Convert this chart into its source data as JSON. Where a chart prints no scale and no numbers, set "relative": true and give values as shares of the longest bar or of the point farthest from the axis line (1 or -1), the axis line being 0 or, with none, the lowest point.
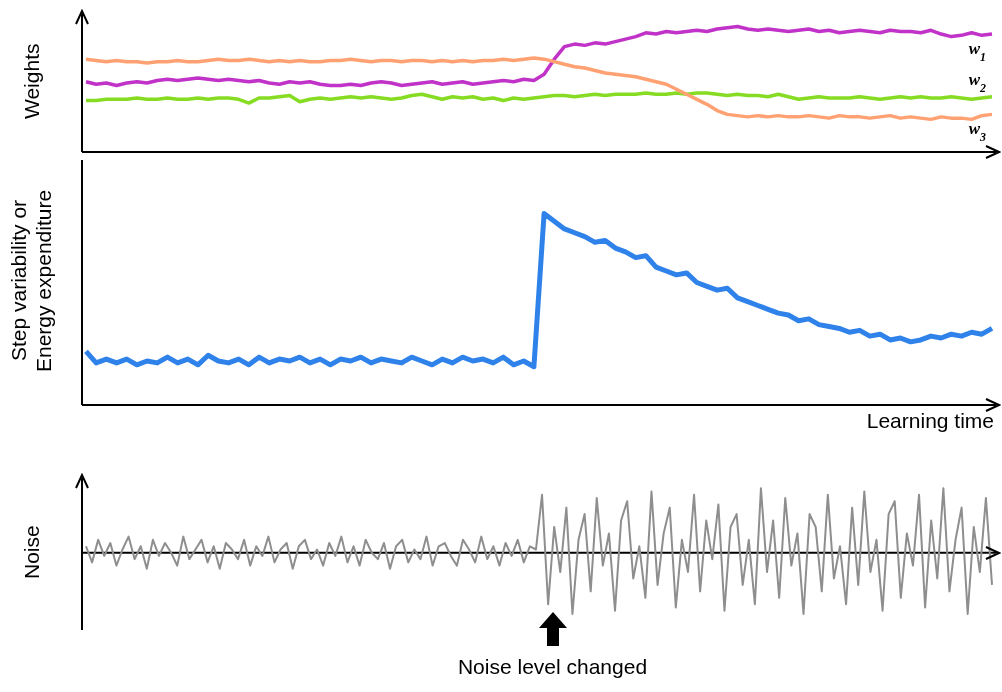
{
  "chart_data": [
    {
      "type": "line",
      "ylabel": "Weights",
      "relative": true,
      "marker": "none",
      "categories": [
        null,
        null,
        null,
        null,
        null,
        null,
        null,
        null,
        null,
        null,
        null,
        null,
        null,
        null,
        null,
        null,
        null,
        null,
        null,
        null,
        null,
        null,
        null,
        null,
        null,
        null,
        null,
        null,
        null,
        null,
        null,
        null,
        null,
        null,
        null,
        null,
        null,
        null,
        null,
        null,
        null,
        null,
        null,
        null,
        null,
        null,
        null,
        null,
        null,
        null,
        null,
        null,
        null,
        null,
        null,
        null,
        null,
        null,
        null,
        null,
        null,
        null,
        null,
        null,
        null,
        null,
        null,
        null,
        null,
        null,
        null,
        null,
        null,
        null,
        null,
        null,
        null,
        null,
        null,
        null,
        null,
        null,
        null,
        null,
        null,
        null,
        null,
        null,
        null,
        null
      ],
      "series": [
        {
          "name": "w$_{1}$",
          "color": "#c032c8",
          "values": [
            0.56,
            0.54,
            0.55,
            0.53,
            0.55,
            0.56,
            0.55,
            0.57,
            0.58,
            0.57,
            0.58,
            0.59,
            0.58,
            0.57,
            0.58,
            0.57,
            0.56,
            0.57,
            0.55,
            0.54,
            0.56,
            0.55,
            0.56,
            0.54,
            0.53,
            0.53,
            0.54,
            0.53,
            0.55,
            0.56,
            0.55,
            0.53,
            0.54,
            0.55,
            0.56,
            0.54,
            0.55,
            0.56,
            0.54,
            0.55,
            0.56,
            0.57,
            0.56,
            0.58,
            0.57,
            0.62,
            0.74,
            0.84,
            0.86,
            0.85,
            0.87,
            0.86,
            0.88,
            0.9,
            0.92,
            0.95,
            0.94,
            0.96,
            0.95,
            0.96,
            0.97,
            0.96,
            0.98,
            0.99,
            1.0,
            0.98,
            0.97,
            0.98,
            0.97,
            0.96,
            0.97,
            0.98,
            0.96,
            0.97,
            0.95,
            0.96,
            0.97,
            0.96,
            0.95,
            0.97,
            0.96,
            0.96,
            0.95,
            0.97,
            0.94,
            0.92,
            0.93,
            0.95,
            0.93,
            0.94
          ]
        },
        {
          "name": "w$_{2}$",
          "color": "#86dc22",
          "values": [
            0.41,
            0.41,
            0.42,
            0.42,
            0.42,
            0.43,
            0.42,
            0.42,
            0.43,
            0.42,
            0.42,
            0.43,
            0.42,
            0.43,
            0.43,
            0.42,
            0.39,
            0.43,
            0.43,
            0.44,
            0.45,
            0.4,
            0.42,
            0.43,
            0.42,
            0.43,
            0.44,
            0.43,
            0.44,
            0.43,
            0.42,
            0.43,
            0.45,
            0.46,
            0.44,
            0.42,
            0.44,
            0.43,
            0.44,
            0.42,
            0.43,
            0.41,
            0.43,
            0.42,
            0.43,
            0.44,
            0.45,
            0.45,
            0.44,
            0.45,
            0.46,
            0.45,
            0.46,
            0.46,
            0.46,
            0.47,
            0.46,
            0.46,
            0.47,
            0.46,
            0.47,
            0.47,
            0.46,
            0.45,
            0.46,
            0.45,
            0.45,
            0.44,
            0.46,
            0.44,
            0.42,
            0.43,
            0.44,
            0.43,
            0.43,
            0.43,
            0.44,
            0.43,
            0.42,
            0.43,
            0.44,
            0.43,
            0.44,
            0.43,
            0.43,
            0.44,
            0.43,
            0.42,
            0.43,
            0.44
          ]
        },
        {
          "name": "w$_{3}$",
          "color": "#ffa172",
          "values": [
            0.74,
            0.73,
            0.72,
            0.73,
            0.72,
            0.72,
            0.71,
            0.72,
            0.72,
            0.73,
            0.72,
            0.72,
            0.73,
            0.74,
            0.73,
            0.73,
            0.74,
            0.73,
            0.72,
            0.73,
            0.72,
            0.73,
            0.72,
            0.72,
            0.73,
            0.73,
            0.74,
            0.73,
            0.72,
            0.73,
            0.73,
            0.72,
            0.73,
            0.73,
            0.72,
            0.73,
            0.72,
            0.73,
            0.72,
            0.73,
            0.73,
            0.74,
            0.73,
            0.74,
            0.75,
            0.74,
            0.72,
            0.7,
            0.68,
            0.67,
            0.65,
            0.63,
            0.62,
            0.61,
            0.6,
            0.58,
            0.56,
            0.54,
            0.5,
            0.46,
            0.42,
            0.38,
            0.33,
            0.3,
            0.29,
            0.28,
            0.29,
            0.28,
            0.29,
            0.28,
            0.28,
            0.29,
            0.28,
            0.27,
            0.29,
            0.28,
            0.28,
            0.27,
            0.28,
            0.29,
            0.27,
            0.28,
            0.27,
            0.26,
            0.28,
            0.27,
            0.27,
            0.26,
            0.29,
            0.3
          ]
        }
      ]
    },
    {
      "type": "line",
      "ylabel": "Step variability or Energy expenditure",
      "xlabel": "Learning time",
      "relative": true,
      "marker": "none",
      "categories": [
        null,
        null,
        null,
        null,
        null,
        null,
        null,
        null,
        null,
        null,
        null,
        null,
        null,
        null,
        null,
        null,
        null,
        null,
        null,
        null,
        null,
        null,
        null,
        null,
        null,
        null,
        null,
        null,
        null,
        null,
        null,
        null,
        null,
        null,
        null,
        null,
        null,
        null,
        null,
        null,
        null,
        null,
        null,
        null,
        null,
        null,
        null,
        null,
        null,
        null,
        null,
        null,
        null,
        null,
        null,
        null,
        null,
        null,
        null,
        null,
        null,
        null,
        null,
        null,
        null,
        null,
        null,
        null,
        null,
        null,
        null,
        null,
        null,
        null,
        null,
        null,
        null,
        null,
        null,
        null,
        null,
        null,
        null,
        null,
        null,
        null,
        null,
        null,
        null,
        null
      ],
      "series": [
        {
          "color": "#2f82ea",
          "values": [
            0.28,
            0.22,
            0.24,
            0.22,
            0.24,
            0.21,
            0.23,
            0.22,
            0.25,
            0.22,
            0.24,
            0.21,
            0.26,
            0.23,
            0.22,
            0.24,
            0.21,
            0.25,
            0.22,
            0.24,
            0.23,
            0.25,
            0.22,
            0.24,
            0.21,
            0.24,
            0.23,
            0.25,
            0.22,
            0.24,
            0.23,
            0.22,
            0.25,
            0.23,
            0.21,
            0.24,
            0.22,
            0.25,
            0.23,
            0.24,
            0.22,
            0.25,
            0.21,
            0.23,
            0.2,
            1.0,
            0.96,
            0.92,
            0.9,
            0.88,
            0.85,
            0.86,
            0.82,
            0.8,
            0.77,
            0.78,
            0.72,
            0.7,
            0.68,
            0.69,
            0.64,
            0.62,
            0.6,
            0.61,
            0.56,
            0.54,
            0.52,
            0.5,
            0.48,
            0.47,
            0.44,
            0.45,
            0.42,
            0.41,
            0.4,
            0.38,
            0.39,
            0.36,
            0.37,
            0.34,
            0.35,
            0.33,
            0.34,
            0.36,
            0.35,
            0.37,
            0.36,
            0.38,
            0.37,
            0.4
          ]
        }
      ]
    },
    {
      "type": "line",
      "ylabel": "Noise",
      "relative": true,
      "marker": "none",
      "annotations": [
        "Noise level changed"
      ],
      "categories": [
        null,
        null,
        null,
        null,
        null,
        null,
        null,
        null,
        null,
        null,
        null,
        null,
        null,
        null,
        null,
        null,
        null,
        null,
        null,
        null,
        null,
        null,
        null,
        null,
        null,
        null,
        null,
        null,
        null,
        null,
        null,
        null,
        null,
        null,
        null,
        null,
        null,
        null,
        null,
        null,
        null,
        null,
        null,
        null,
        null,
        null,
        null,
        null,
        null,
        null,
        null,
        null,
        null,
        null,
        null,
        null,
        null,
        null,
        null,
        null,
        null,
        null,
        null,
        null,
        null,
        null,
        null,
        null,
        null,
        null,
        null,
        null,
        null,
        null,
        null,
        null,
        null,
        null,
        null,
        null,
        null,
        null,
        null,
        null,
        null,
        null,
        null,
        null,
        null,
        null,
        null,
        null,
        null,
        null,
        null,
        null,
        null,
        null,
        null,
        null,
        null,
        null,
        null,
        null,
        null,
        null,
        null,
        null,
        null,
        null,
        null,
        null,
        null,
        null,
        null,
        null,
        null,
        null,
        null,
        null,
        null,
        null,
        null,
        null,
        null,
        null,
        null,
        null,
        null,
        null,
        null,
        null,
        null,
        null,
        null,
        null,
        null,
        null,
        null,
        null,
        null,
        null,
        null,
        null,
        null,
        null,
        null,
        null,
        null,
        null
      ],
      "series": [
        {
          "color": "#8e8e8e",
          "values": [
            0.1,
            -0.15,
            0.2,
            -0.05,
            0.15,
            -0.2,
            0.05,
            0.25,
            -0.1,
            0.1,
            -0.25,
            0.2,
            -0.05,
            0.15,
            0,
            -0.2,
            0.25,
            -0.1,
            0.05,
            0.2,
            -0.15,
            0.1,
            -0.25,
            0.15,
            0.05,
            -0.1,
            0.2,
            -0.2,
            0.1,
            -0.05,
            0.25,
            -0.15,
            0.05,
            0.15,
            -0.25,
            0.1,
            0.2,
            -0.1,
            0.05,
            -0.2,
            0.15,
            -0.05,
            0.25,
            -0.15,
            0.1,
            -0.2,
            0.2,
            0,
            -0.1,
            0.15,
            -0.25,
            0.1,
            0.2,
            -0.15,
            0.05,
            -0.1,
            0.25,
            -0.2,
            0.1,
            0.15,
            -0.05,
            -0.2,
            0.2,
            0.05,
            -0.15,
            0.25,
            -0.1,
            0.1,
            -0.2,
            0.15,
            -0.05,
            0.2,
            -0.15,
            0.1,
            0.05,
            0.9,
            -0.8,
            0.4,
            -0.3,
            0.7,
            -0.95,
            0.2,
            0.6,
            -0.6,
            0.85,
            -0.2,
            0.3,
            -0.9,
            0.5,
            0.8,
            -0.4,
            0.1,
            -0.7,
            0.95,
            -0.5,
            0.3,
            0.7,
            -0.85,
            0.2,
            -0.3,
            0.9,
            -0.6,
            0.5,
            -0.1,
            0.75,
            -0.9,
            0.4,
            0.6,
            -0.5,
            0.2,
            -0.8,
            1.0,
            -0.3,
            0.5,
            -0.7,
            0.85,
            -0.2,
            0.3,
            -0.95,
            0.6,
            0.4,
            -0.6,
            0.9,
            -0.4,
            0.1,
            -0.8,
            0.7,
            -0.5,
            0.95,
            -0.3,
            0.2,
            -0.9,
            0.6,
            0.8,
            -0.7,
            0.3,
            -0.2,
            0.9,
            -0.85,
            0.5,
            -0.4,
            1.0,
            -0.6,
            0.2,
            0.7,
            -0.95,
            0.4,
            -0.3,
            0.85,
            -0.5
          ]
        }
      ]
    }
  ]
}
